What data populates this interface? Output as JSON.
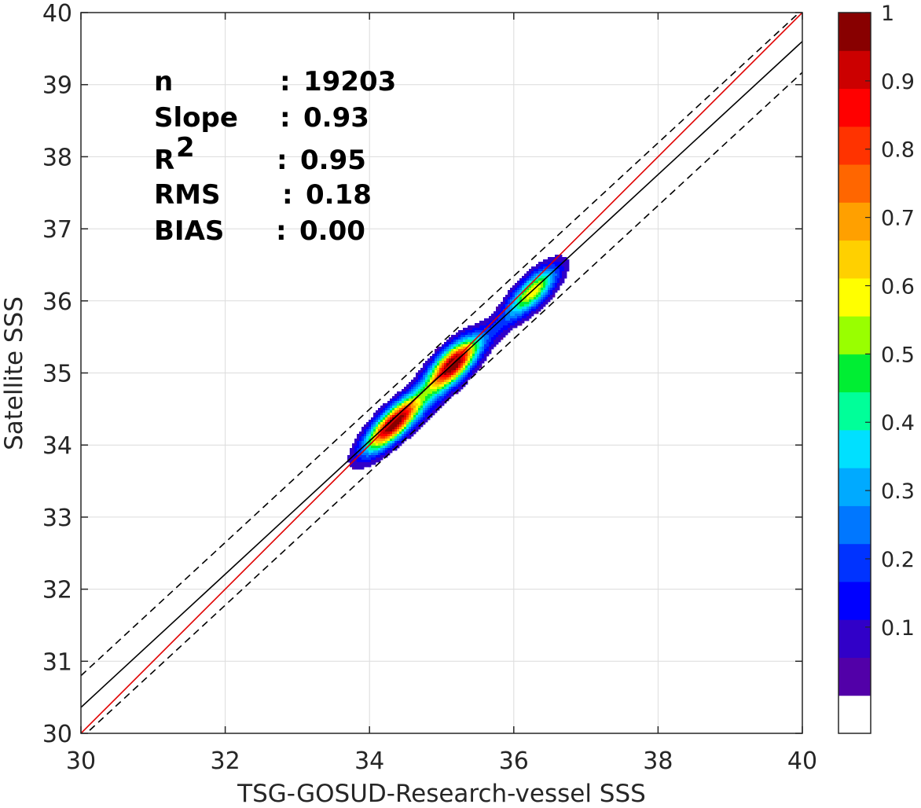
{
  "chart_data": {
    "type": "scatter",
    "style": "density contour (filled)",
    "xlabel": "TSG-GOSUD-Research-vessel SSS",
    "ylabel": "Satellite SSS",
    "xlim": [
      30,
      40
    ],
    "ylim": [
      30,
      40
    ],
    "xticks": [
      "30",
      "32",
      "34",
      "36",
      "38",
      "40"
    ],
    "yticks": [
      "30",
      "31",
      "32",
      "33",
      "34",
      "35",
      "36",
      "37",
      "38",
      "39",
      "40"
    ],
    "grid": true,
    "stats": [
      {
        "label": "n",
        "sep": ":",
        "value": "19203"
      },
      {
        "label": "Slope",
        "sep": ":",
        "value": "0.93"
      },
      {
        "label": "R",
        "sup": "2",
        "sep": ":",
        "value": "0.95"
      },
      {
        "label": "RMS",
        "sep": ":",
        "value": "0.18"
      },
      {
        "label": "BIAS",
        "sep": ":",
        "value": "0.00"
      }
    ],
    "lines": [
      {
        "kind": "identity",
        "color": "#e00000",
        "x": [
          30,
          40
        ],
        "y": [
          30,
          40
        ]
      },
      {
        "kind": "regression",
        "color": "#000000",
        "x": [
          30,
          40
        ],
        "y": [
          30.36,
          39.6
        ]
      },
      {
        "kind": "regression-plus",
        "color": "#000000",
        "dashed": true,
        "x": [
          30,
          40
        ],
        "y": [
          30.8,
          40.04
        ]
      },
      {
        "kind": "regression-minus",
        "color": "#000000",
        "dashed": true,
        "x": [
          30,
          40
        ],
        "y": [
          29.93,
          39.17
        ]
      }
    ],
    "density_clusters": [
      {
        "x": 34.3,
        "y": 34.3,
        "sx": 0.34,
        "sy": 0.26,
        "peak": 1.0
      },
      {
        "x": 34.8,
        "y": 34.7,
        "sx": 0.4,
        "sy": 0.3,
        "peak": 0.2
      },
      {
        "x": 35.15,
        "y": 35.15,
        "sx": 0.3,
        "sy": 0.28,
        "peak": 1.0
      },
      {
        "x": 35.75,
        "y": 35.65,
        "sx": 0.3,
        "sy": 0.22,
        "peak": 0.12
      },
      {
        "x": 36.25,
        "y": 36.15,
        "sx": 0.3,
        "sy": 0.26,
        "peak": 0.6
      }
    ],
    "colorbar": {
      "ticks": [
        "0.1",
        "0.2",
        "0.3",
        "0.4",
        "0.5",
        "0.6",
        "0.7",
        "0.8",
        "0.9",
        "1"
      ],
      "colors": [
        "#ffffff",
        "#5200a8",
        "#3100c8",
        "#0000ff",
        "#0033ff",
        "#0077ff",
        "#00aaff",
        "#00e0ff",
        "#00ff99",
        "#00ee33",
        "#99ff00",
        "#ffff00",
        "#ffd000",
        "#ffa000",
        "#ff6600",
        "#ff3300",
        "#ff0000",
        "#cc0000",
        "#880000"
      ]
    }
  }
}
